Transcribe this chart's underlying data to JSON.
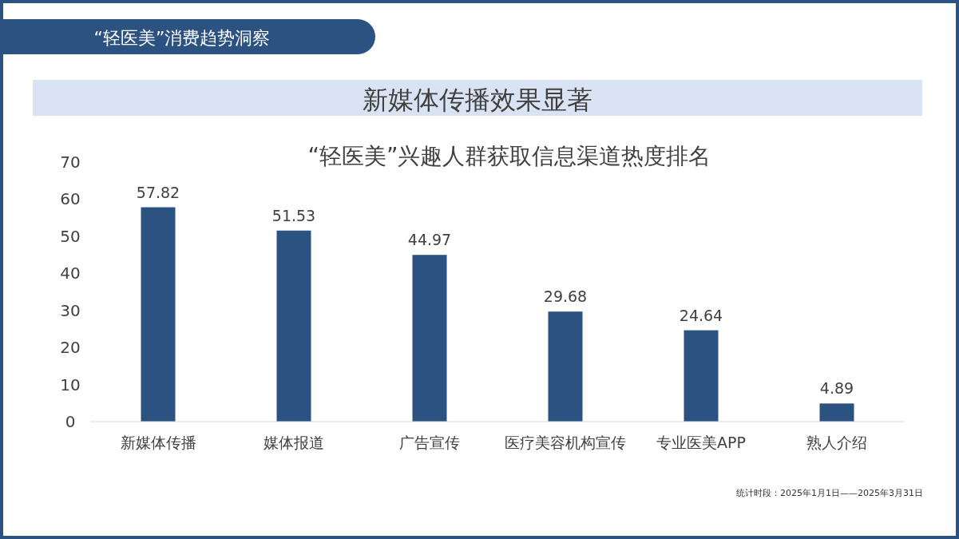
{
  "chart_data": {
    "type": "bar",
    "title": "新媒体传播效果显著",
    "subtitle": "“轻医美”兴趣人群获取信息渠道热度排名",
    "annotations": [
      "“轻医美”消费趋势洞察",
      "统计时段：2025年1月1日——2025年3月31日"
    ],
    "categories": [
      "新媒体传播",
      "媒体报道",
      "广告宣传",
      "医疗美容机构宣传",
      "专业医美APP",
      "熟人介绍"
    ],
    "values": [
      57.82,
      51.53,
      44.97,
      29.68,
      24.64,
      4.89
    ],
    "color": "#2c5282",
    "ylim": [
      0,
      70
    ],
    "yticks": [
      0,
      10,
      20,
      30,
      40,
      50,
      60,
      70
    ],
    "grid": false,
    "data_labels": true
  }
}
